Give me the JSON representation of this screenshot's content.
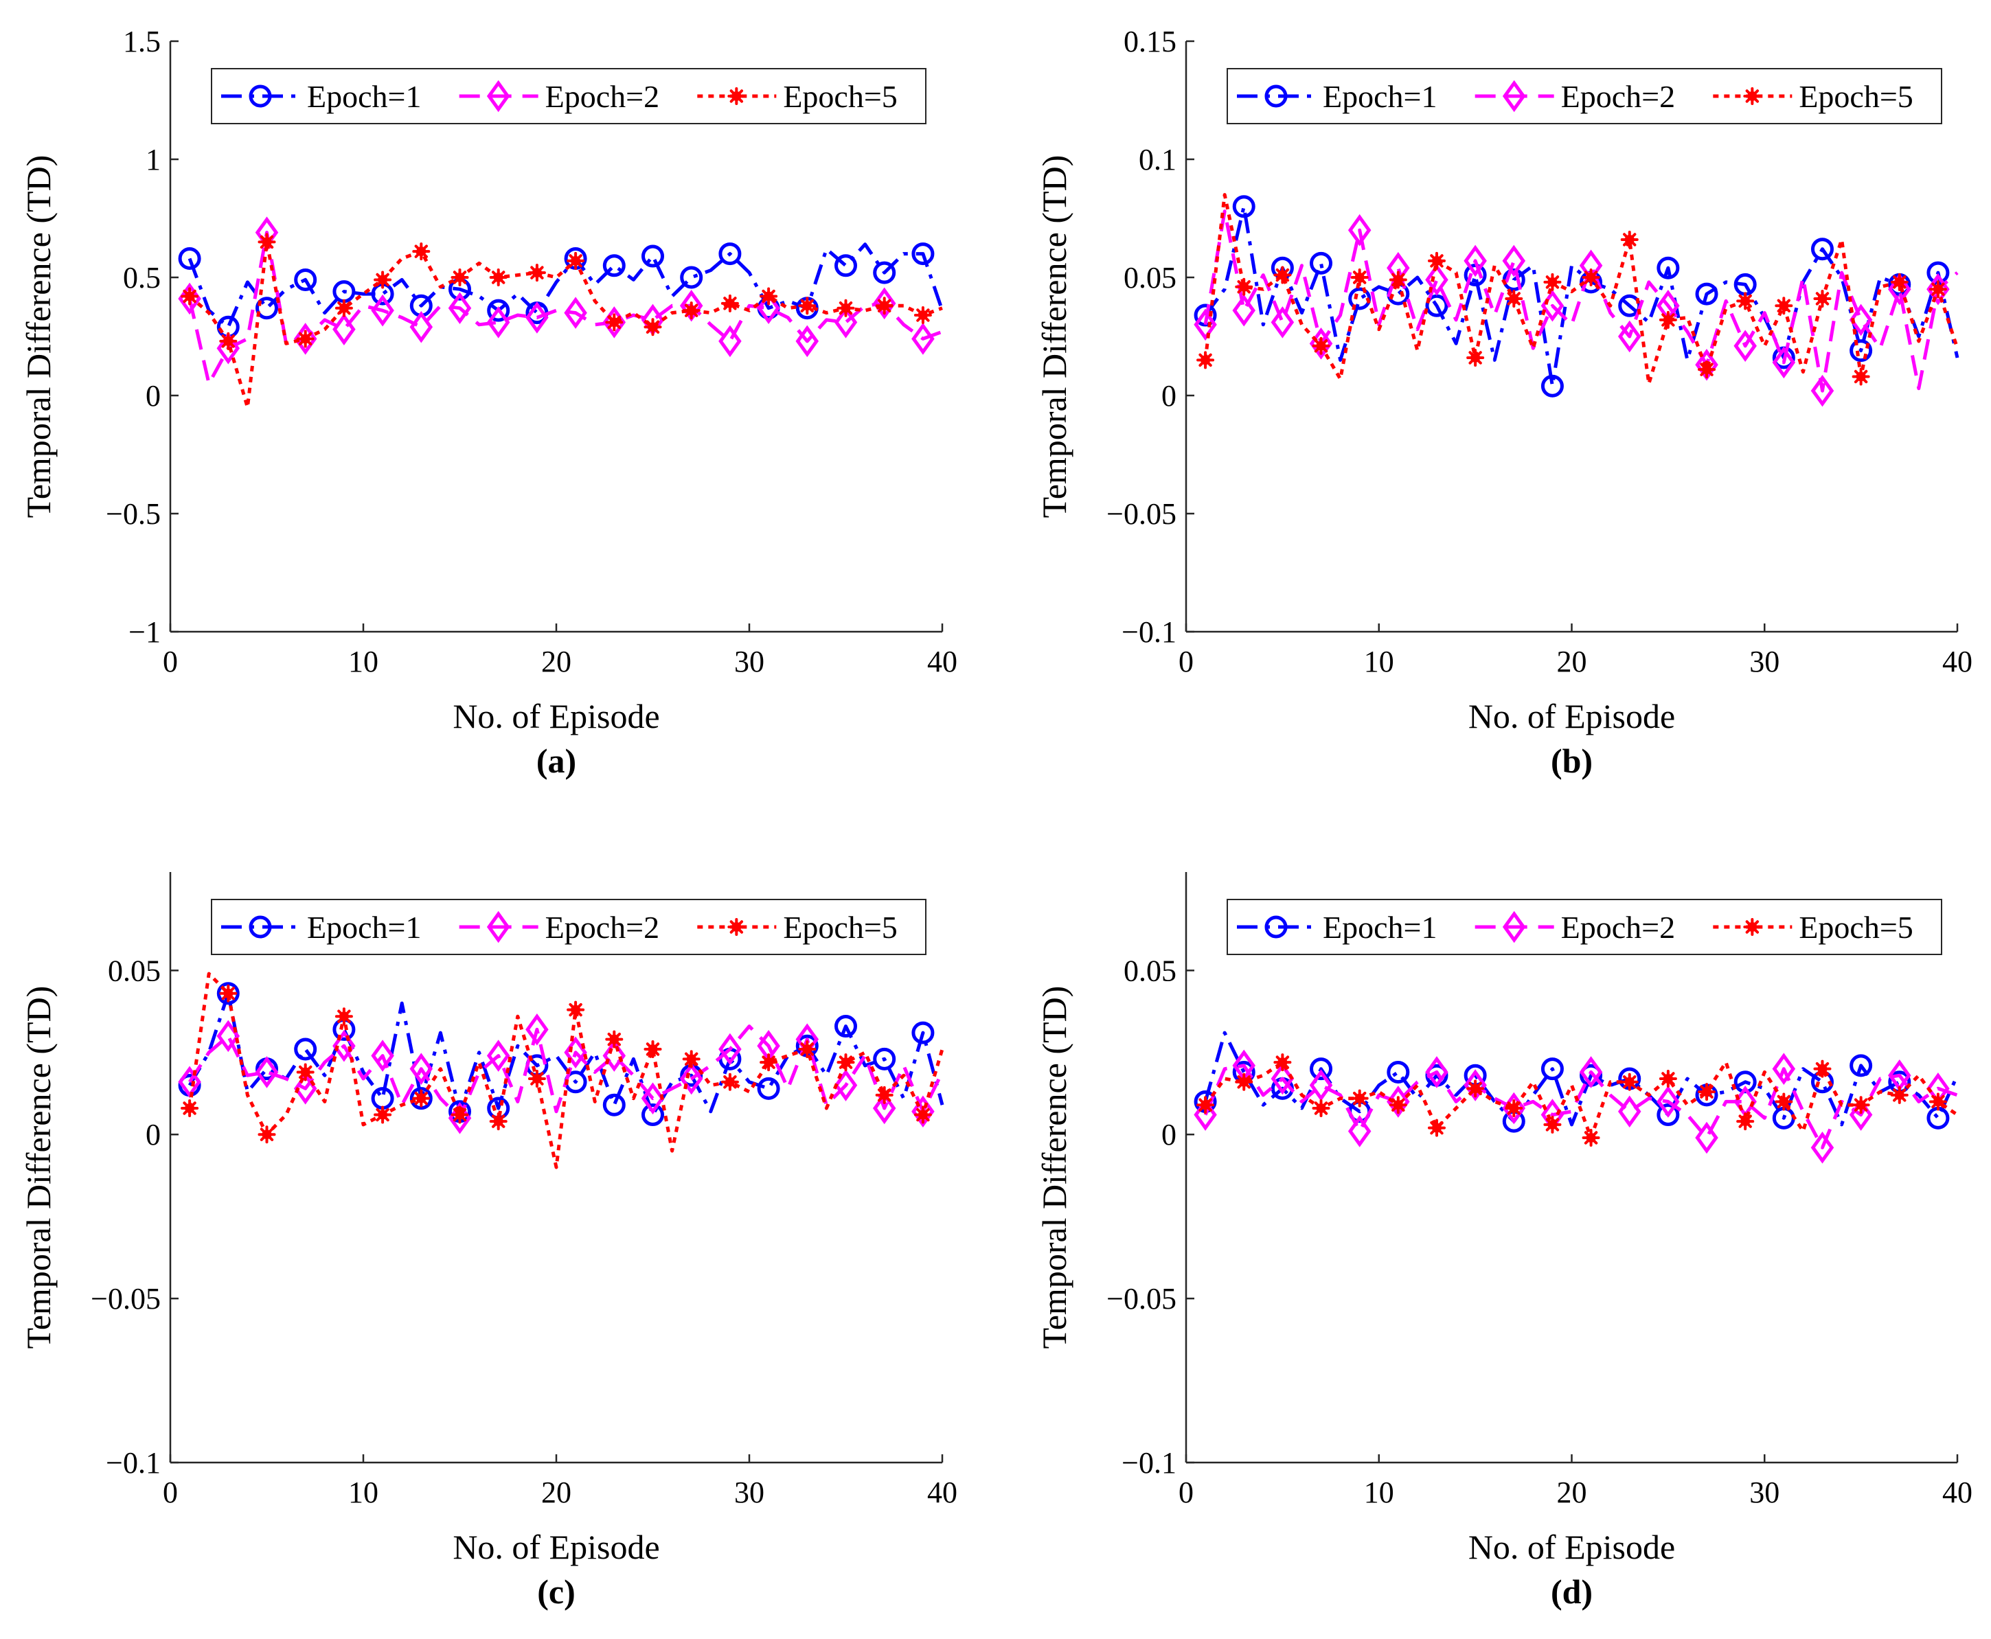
{
  "figure": {
    "legend_labels": [
      "Epoch=1",
      "Epoch=2",
      "Epoch=5"
    ]
  },
  "chart_data": [
    {
      "type": "line",
      "caption": "(a)",
      "xlabel": "No. of Episode",
      "ylabel": "Temporal Difference (TD)",
      "xlim": [
        0,
        40
      ],
      "ylim": [
        -1,
        1.5
      ],
      "xticks": [
        0,
        10,
        20,
        30,
        40
      ],
      "yticks": [
        -1,
        -0.5,
        0,
        0.5,
        1,
        1.5
      ],
      "xtick_labels": [
        "0",
        "10",
        "20",
        "30",
        "40"
      ],
      "ytick_labels": [
        "−1",
        "−0.5",
        "0",
        "0.5",
        "1",
        "1.5"
      ],
      "legend_position": "top",
      "x": [
        1,
        2,
        3,
        4,
        5,
        6,
        7,
        8,
        9,
        10,
        11,
        12,
        13,
        14,
        15,
        16,
        17,
        18,
        19,
        20,
        21,
        22,
        23,
        24,
        25,
        26,
        27,
        28,
        29,
        30,
        31,
        32,
        33,
        34,
        35,
        36,
        37,
        38,
        39,
        40
      ],
      "series": [
        {
          "name": "Epoch=1",
          "color": "#0000ff",
          "marker": "circle",
          "dash": "dashdot",
          "values": [
            0.58,
            0.36,
            0.29,
            0.48,
            0.37,
            0.45,
            0.49,
            0.35,
            0.44,
            0.43,
            0.43,
            0.49,
            0.38,
            0.46,
            0.45,
            0.42,
            0.36,
            0.43,
            0.35,
            0.48,
            0.58,
            0.47,
            0.55,
            0.49,
            0.59,
            0.42,
            0.5,
            0.53,
            0.6,
            0.52,
            0.37,
            0.4,
            0.37,
            0.62,
            0.55,
            0.64,
            0.52,
            0.6,
            0.6,
            0.36
          ]
        },
        {
          "name": "Epoch=2",
          "color": "#ff00ff",
          "marker": "diamond",
          "dash": "dashed",
          "values": [
            0.41,
            0.05,
            0.2,
            0.24,
            0.69,
            0.22,
            0.24,
            0.32,
            0.28,
            0.38,
            0.36,
            0.33,
            0.29,
            0.38,
            0.37,
            0.3,
            0.31,
            0.34,
            0.33,
            0.36,
            0.35,
            0.3,
            0.31,
            0.34,
            0.32,
            0.38,
            0.38,
            0.3,
            0.23,
            0.38,
            0.37,
            0.33,
            0.23,
            0.32,
            0.31,
            0.38,
            0.39,
            0.3,
            0.24,
            0.27
          ]
        },
        {
          "name": "Epoch=5",
          "color": "#ff0000",
          "marker": "asterisk",
          "dash": "dotted",
          "values": [
            0.42,
            0.35,
            0.23,
            -0.05,
            0.65,
            0.22,
            0.24,
            0.28,
            0.37,
            0.43,
            0.49,
            0.58,
            0.61,
            0.46,
            0.5,
            0.56,
            0.5,
            0.51,
            0.52,
            0.5,
            0.57,
            0.4,
            0.31,
            0.35,
            0.29,
            0.35,
            0.36,
            0.35,
            0.39,
            0.36,
            0.42,
            0.37,
            0.38,
            0.35,
            0.37,
            0.36,
            0.38,
            0.38,
            0.34,
            0.37
          ]
        }
      ]
    },
    {
      "type": "line",
      "caption": "(b)",
      "xlabel": "No. of Episode",
      "ylabel": "Temporal Difference (TD)",
      "xlim": [
        0,
        40
      ],
      "ylim": [
        -0.1,
        0.15
      ],
      "xticks": [
        0,
        10,
        20,
        30,
        40
      ],
      "yticks": [
        -0.1,
        -0.05,
        0,
        0.05,
        0.1,
        0.15
      ],
      "xtick_labels": [
        "0",
        "10",
        "20",
        "30",
        "40"
      ],
      "ytick_labels": [
        "−0.1",
        "−0.05",
        "0",
        "0.05",
        "0.1",
        "0.15"
      ],
      "legend_position": "top",
      "x": [
        1,
        2,
        3,
        4,
        5,
        6,
        7,
        8,
        9,
        10,
        11,
        12,
        13,
        14,
        15,
        16,
        17,
        18,
        19,
        20,
        21,
        22,
        23,
        24,
        25,
        26,
        27,
        28,
        29,
        30,
        31,
        32,
        33,
        34,
        35,
        36,
        37,
        38,
        39,
        40
      ],
      "series": [
        {
          "name": "Epoch=1",
          "color": "#0000ff",
          "marker": "circle",
          "dash": "dashdot",
          "values": [
            0.034,
            0.045,
            0.08,
            0.03,
            0.054,
            0.035,
            0.056,
            0.015,
            0.041,
            0.046,
            0.043,
            0.05,
            0.038,
            0.022,
            0.051,
            0.015,
            0.049,
            0.055,
            0.004,
            0.055,
            0.048,
            0.045,
            0.038,
            0.031,
            0.054,
            0.015,
            0.043,
            0.048,
            0.047,
            0.033,
            0.016,
            0.048,
            0.062,
            0.05,
            0.019,
            0.05,
            0.047,
            0.025,
            0.052,
            0.016
          ]
        },
        {
          "name": "Epoch=2",
          "color": "#ff00ff",
          "marker": "diamond",
          "dash": "dashed",
          "values": [
            0.03,
            0.078,
            0.036,
            0.051,
            0.031,
            0.055,
            0.022,
            0.034,
            0.07,
            0.03,
            0.054,
            0.028,
            0.049,
            0.032,
            0.057,
            0.034,
            0.057,
            0.02,
            0.038,
            0.03,
            0.055,
            0.035,
            0.025,
            0.048,
            0.038,
            0.027,
            0.013,
            0.04,
            0.021,
            0.035,
            0.014,
            0.05,
            0.002,
            0.052,
            0.032,
            0.02,
            0.045,
            0.003,
            0.045,
            0.052
          ]
        },
        {
          "name": "Epoch=5",
          "color": "#ff0000",
          "marker": "asterisk",
          "dash": "dotted",
          "values": [
            0.015,
            0.085,
            0.046,
            0.045,
            0.051,
            0.03,
            0.021,
            0.007,
            0.05,
            0.028,
            0.049,
            0.019,
            0.057,
            0.052,
            0.016,
            0.055,
            0.041,
            0.02,
            0.048,
            0.044,
            0.05,
            0.038,
            0.066,
            0.005,
            0.032,
            0.033,
            0.011,
            0.037,
            0.04,
            0.021,
            0.038,
            0.01,
            0.041,
            0.066,
            0.008,
            0.046,
            0.048,
            0.023,
            0.045,
            0.02
          ]
        }
      ]
    },
    {
      "type": "line",
      "caption": "(c)",
      "xlabel": "No. of Episode",
      "ylabel": "Temporal Difference (TD)",
      "xlim": [
        0,
        40
      ],
      "ylim": [
        -0.1,
        0.08
      ],
      "xticks": [
        0,
        10,
        20,
        30,
        40
      ],
      "yticks": [
        -0.1,
        -0.05,
        0,
        0.05
      ],
      "xtick_labels": [
        "0",
        "10",
        "20",
        "30",
        "40"
      ],
      "ytick_labels": [
        "−0.1",
        "−0.05",
        "0",
        "0.05"
      ],
      "legend_position": "top",
      "x": [
        1,
        2,
        3,
        4,
        5,
        6,
        7,
        8,
        9,
        10,
        11,
        12,
        13,
        14,
        15,
        16,
        17,
        18,
        19,
        20,
        21,
        22,
        23,
        24,
        25,
        26,
        27,
        28,
        29,
        30,
        31,
        32,
        33,
        34,
        35,
        36,
        37,
        38,
        39,
        40
      ],
      "series": [
        {
          "name": "Epoch=1",
          "color": "#0000ff",
          "marker": "circle",
          "dash": "dashdot",
          "values": [
            0.015,
            0.025,
            0.043,
            0.013,
            0.02,
            0.017,
            0.026,
            0.018,
            0.032,
            0.019,
            0.011,
            0.04,
            0.011,
            0.031,
            0.007,
            0.025,
            0.008,
            0.027,
            0.021,
            0.024,
            0.016,
            0.025,
            0.009,
            0.023,
            0.006,
            0.016,
            0.018,
            0.007,
            0.023,
            0.016,
            0.014,
            0.024,
            0.027,
            0.018,
            0.033,
            0.021,
            0.023,
            0.011,
            0.031,
            0.009
          ]
        },
        {
          "name": "Epoch=2",
          "color": "#ff00ff",
          "marker": "diamond",
          "dash": "dashed",
          "values": [
            0.016,
            0.025,
            0.03,
            0.018,
            0.019,
            0.017,
            0.014,
            0.022,
            0.027,
            0.017,
            0.024,
            0.009,
            0.02,
            0.011,
            0.005,
            0.019,
            0.024,
            0.01,
            0.032,
            0.007,
            0.025,
            0.019,
            0.024,
            0.018,
            0.011,
            0.014,
            0.017,
            0.021,
            0.026,
            0.033,
            0.027,
            0.014,
            0.029,
            0.009,
            0.015,
            0.024,
            0.008,
            0.021,
            0.007,
            0.019
          ]
        },
        {
          "name": "Epoch=5",
          "color": "#ff0000",
          "marker": "asterisk",
          "dash": "dotted",
          "values": [
            0.008,
            0.049,
            0.043,
            0.012,
            0,
            0.006,
            0.019,
            0.01,
            0.036,
            0.003,
            0.006,
            0.009,
            0.011,
            0.02,
            0.006,
            0.022,
            0.004,
            0.036,
            0.017,
            -0.01,
            0.038,
            0.01,
            0.029,
            0.011,
            0.026,
            -0.005,
            0.023,
            0.015,
            0.016,
            0.013,
            0.022,
            0.024,
            0.026,
            0.008,
            0.022,
            0.025,
            0.012,
            0.018,
            0.006,
            0.026
          ]
        }
      ]
    },
    {
      "type": "line",
      "caption": "(d)",
      "xlabel": "No. of Episode",
      "ylabel": "Temporal Difference (TD)",
      "xlim": [
        0,
        40
      ],
      "ylim": [
        -0.1,
        0.08
      ],
      "xticks": [
        0,
        10,
        20,
        30,
        40
      ],
      "yticks": [
        -0.1,
        -0.05,
        0,
        0.05
      ],
      "xtick_labels": [
        "0",
        "10",
        "20",
        "30",
        "40"
      ],
      "ytick_labels": [
        "−0.1",
        "−0.05",
        "0",
        "0.05"
      ],
      "legend_position": "top",
      "x": [
        1,
        2,
        3,
        4,
        5,
        6,
        7,
        8,
        9,
        10,
        11,
        12,
        13,
        14,
        15,
        16,
        17,
        18,
        19,
        20,
        21,
        22,
        23,
        24,
        25,
        26,
        27,
        28,
        29,
        30,
        31,
        32,
        33,
        34,
        35,
        36,
        37,
        38,
        39,
        40
      ],
      "series": [
        {
          "name": "Epoch=1",
          "color": "#0000ff",
          "marker": "circle",
          "dash": "dashdot",
          "values": [
            0.01,
            0.031,
            0.019,
            0.009,
            0.014,
            0.008,
            0.02,
            0.011,
            0.007,
            0.015,
            0.019,
            0.011,
            0.018,
            0.012,
            0.018,
            0.01,
            0.004,
            0.012,
            0.02,
            0.003,
            0.018,
            0.015,
            0.017,
            0.012,
            0.006,
            0.017,
            0.012,
            0.013,
            0.016,
            0.014,
            0.005,
            0.02,
            0.016,
            0.003,
            0.021,
            0.013,
            0.016,
            0.012,
            0.005,
            0.018
          ]
        },
        {
          "name": "Epoch=2",
          "color": "#ff00ff",
          "marker": "diamond",
          "dash": "dashed",
          "values": [
            0.006,
            0.02,
            0.021,
            0.012,
            0.017,
            0.01,
            0.015,
            0.012,
            0.001,
            0.012,
            0.01,
            0.016,
            0.019,
            0.01,
            0.015,
            0.011,
            0.008,
            0.01,
            0.006,
            0.007,
            0.019,
            0.012,
            0.007,
            0.011,
            0.01,
            0.006,
            -0.001,
            0.01,
            0.01,
            0.005,
            0.02,
            0.007,
            -0.004,
            0.01,
            0.006,
            0.017,
            0.018,
            0.01,
            0.014,
            0.012
          ]
        },
        {
          "name": "Epoch=5",
          "color": "#ff0000",
          "marker": "asterisk",
          "dash": "dotted",
          "values": [
            0.009,
            0.017,
            0.016,
            0.018,
            0.022,
            0.012,
            0.008,
            0.011,
            0.011,
            0.013,
            0.009,
            0.015,
            0.002,
            0.008,
            0.014,
            0.01,
            0.008,
            0.016,
            0.003,
            0.015,
            -0.001,
            0.016,
            0.016,
            0.012,
            0.017,
            0.009,
            0.013,
            0.022,
            0.004,
            0.019,
            0.01,
            0.001,
            0.02,
            0.009,
            0.009,
            0.013,
            0.012,
            0.018,
            0.01,
            0.006
          ]
        }
      ]
    }
  ]
}
